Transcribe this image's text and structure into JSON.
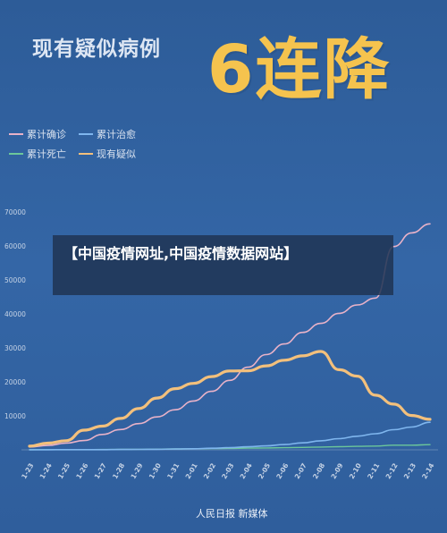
{
  "headline": {
    "small": "现有疑似病例",
    "big": "6连降"
  },
  "banner_text": "【中国疫情网址,中国疫情数据网站】",
  "credit": "人民日报 新媒体",
  "colors": {
    "confirmed": "#e8b2c8",
    "recovered": "#7fb6ee",
    "deaths": "#6cc79a",
    "suspected": "#f3c07c"
  },
  "chart_data": {
    "type": "line",
    "title": "",
    "xlabel": "",
    "ylabel": "",
    "ylim": [
      0,
      70000
    ],
    "yticks": [
      0,
      10000,
      20000,
      30000,
      40000,
      50000,
      60000,
      70000
    ],
    "grid": false,
    "legend_position": "top-left",
    "x": [
      "1-23",
      "1-24",
      "1-25",
      "1-26",
      "1-27",
      "1-28",
      "1-29",
      "1-30",
      "1-31",
      "2-01",
      "2-02",
      "2-03",
      "2-04",
      "2-05",
      "2-06",
      "2-07",
      "2-08",
      "2-09",
      "2-10",
      "2-11",
      "2-12",
      "2-13",
      "2-14"
    ],
    "series": [
      {
        "name": "累计确诊",
        "key": "confirmed",
        "values": [
          830,
          1287,
          1975,
          2744,
          4515,
          5974,
          7711,
          9692,
          11791,
          14380,
          17205,
          20438,
          24324,
          28018,
          31161,
          34546,
          37198,
          40171,
          42638,
          44653,
          59804,
          63851,
          66492
        ]
      },
      {
        "name": "累计治愈",
        "key": "recovered",
        "values": [
          34,
          38,
          49,
          51,
          60,
          103,
          124,
          171,
          243,
          328,
          475,
          632,
          892,
          1153,
          1540,
          2050,
          2649,
          3281,
          3996,
          4740,
          5911,
          6723,
          8096
        ]
      },
      {
        "name": "累计死亡",
        "key": "deaths",
        "values": [
          25,
          41,
          56,
          80,
          106,
          132,
          170,
          213,
          259,
          304,
          361,
          425,
          490,
          563,
          636,
          722,
          811,
          908,
          1016,
          1113,
          1367,
          1380,
          1523
        ]
      },
      {
        "name": "现有疑似",
        "key": "suspected",
        "values": [
          1072,
          1965,
          2684,
          5794,
          6973,
          9239,
          12167,
          15238,
          17988,
          19544,
          21558,
          23214,
          23260,
          24702,
          26359,
          27657,
          28942,
          23589,
          21675,
          16067,
          13435,
          10109,
          8969
        ]
      }
    ]
  }
}
